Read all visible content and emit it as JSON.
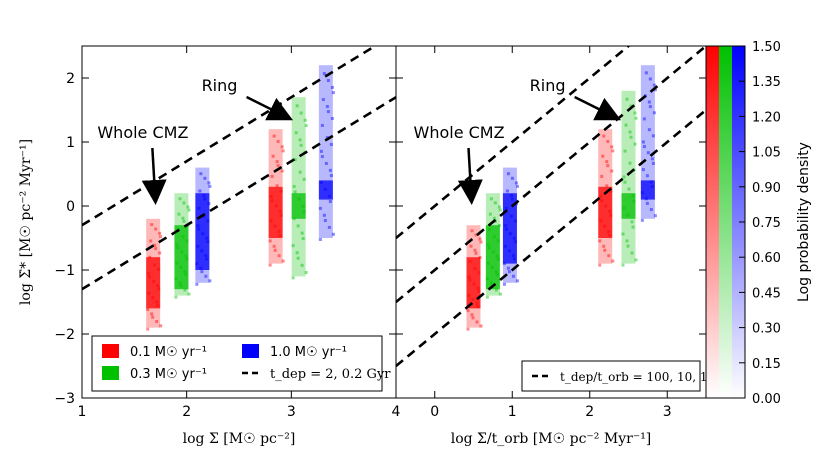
{
  "chart_data": [
    {
      "type": "heatmap",
      "panel": "left",
      "xlabel": "log Σ [M☉ pc⁻²]",
      "ylabel": "log Σ̇* [M☉ pc⁻² Myr⁻¹]",
      "xlim": [
        1,
        4
      ],
      "ylim": [
        -3,
        2.5
      ],
      "xticks": [
        "1",
        "2",
        "3",
        "4"
      ],
      "yticks": [
        "−3",
        "−2",
        "−1",
        "0",
        "1",
        "2"
      ],
      "annotations": [
        {
          "text": "Whole CMZ",
          "x": 1.72,
          "y": 0.0
        },
        {
          "text": "Ring",
          "x": 3.05,
          "y": 1.5
        }
      ],
      "series": [
        {
          "name": "0.1 M☉ yr⁻¹",
          "color": "#ff0000",
          "columns": [
            {
              "x": 1.68,
              "ymin": -1.9,
              "ymax": -0.2,
              "core": [
                -1.6,
                -0.8
              ]
            },
            {
              "x": 2.85,
              "ymin": -0.9,
              "ymax": 1.2,
              "core": [
                -0.5,
                0.3
              ]
            }
          ]
        },
        {
          "name": "0.3 M☉ yr⁻¹",
          "color": "#00c000",
          "columns": [
            {
              "x": 1.95,
              "ymin": -1.4,
              "ymax": 0.2,
              "core": [
                -1.3,
                -0.3
              ]
            },
            {
              "x": 3.07,
              "ymin": -1.1,
              "ymax": 1.7,
              "core": [
                -0.2,
                0.2
              ]
            }
          ]
        },
        {
          "name": "1.0 M☉ yr⁻¹",
          "color": "#0000ff",
          "columns": [
            {
              "x": 2.15,
              "ymin": -1.2,
              "ymax": 0.6,
              "core": [
                -1.0,
                0.2
              ]
            },
            {
              "x": 3.33,
              "ymin": -0.5,
              "ymax": 2.2,
              "core": [
                0.1,
                0.4
              ]
            }
          ]
        }
      ],
      "reference_lines": [
        {
          "slope": 1,
          "intercept": -2.3
        },
        {
          "slope": 1,
          "intercept": -1.3
        }
      ],
      "legend": {
        "position": "lower-left",
        "entries": [
          "0.1 M☉ yr⁻¹",
          "0.3 M☉ yr⁻¹",
          "1.0 M☉ yr⁻¹",
          "t_dep = 2, 0.2 Gyr"
        ]
      }
    },
    {
      "type": "heatmap",
      "panel": "right",
      "xlabel": "log Σ/t_orb [M☉ pc⁻² Myr⁻¹]",
      "xlim": [
        -0.5,
        3.5
      ],
      "ylim": [
        -3,
        2.5
      ],
      "xticks": [
        "0",
        "1",
        "2",
        "3"
      ],
      "annotations": [
        {
          "text": "Whole CMZ",
          "x": 0.5,
          "y": 0.0
        },
        {
          "text": "Ring",
          "x": 2.45,
          "y": 1.5
        }
      ],
      "series": [
        {
          "name": "0.1 M☉ yr⁻¹",
          "color": "#ff0000",
          "columns": [
            {
              "x": 0.5,
              "ymin": -1.9,
              "ymax": -0.3,
              "core": [
                -1.6,
                -0.8
              ]
            },
            {
              "x": 2.2,
              "ymin": -0.9,
              "ymax": 1.2,
              "core": [
                -0.5,
                0.3
              ]
            }
          ]
        },
        {
          "name": "0.3 M☉ yr⁻¹",
          "color": "#00c000",
          "columns": [
            {
              "x": 0.75,
              "ymin": -1.4,
              "ymax": 0.2,
              "core": [
                -1.3,
                -0.3
              ]
            },
            {
              "x": 2.5,
              "ymin": -0.9,
              "ymax": 1.8,
              "core": [
                -0.2,
                0.2
              ]
            }
          ]
        },
        {
          "name": "1.0 M☉ yr⁻¹",
          "color": "#0000ff",
          "columns": [
            {
              "x": 0.97,
              "ymin": -1.2,
              "ymax": 0.6,
              "core": [
                -0.9,
                0.2
              ]
            },
            {
              "x": 2.75,
              "ymin": -0.2,
              "ymax": 2.2,
              "core": [
                0.1,
                0.4
              ]
            }
          ]
        }
      ],
      "reference_lines": [
        {
          "slope": 1,
          "intercept": -2.0
        },
        {
          "slope": 1,
          "intercept": -1.0
        },
        {
          "slope": 1,
          "intercept": 0.0
        }
      ],
      "legend": {
        "position": "lower-right",
        "entries": [
          "t_dep/t_orb = 100, 10, 1"
        ]
      }
    }
  ],
  "colorbar": {
    "label": "Log probability density",
    "ticks": [
      "0.00",
      "0.15",
      "0.30",
      "0.45",
      "0.60",
      "0.75",
      "0.90",
      "1.05",
      "1.20",
      "1.35",
      "1.50"
    ],
    "range": [
      0,
      1.5
    ],
    "colors": [
      "#ff0000",
      "#00c000",
      "#0000ff"
    ]
  }
}
